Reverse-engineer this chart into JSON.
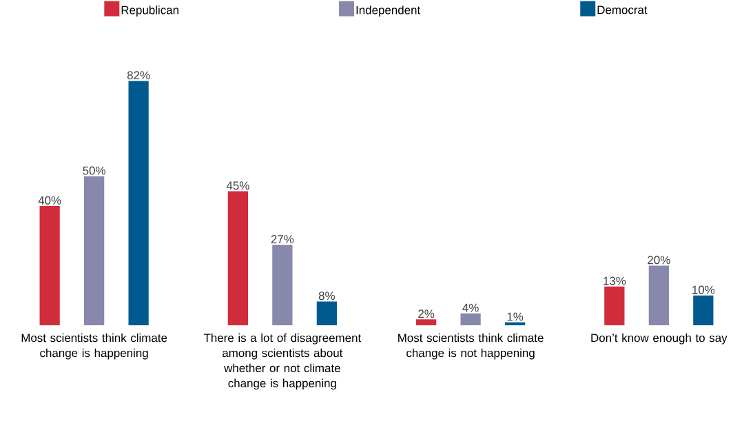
{
  "chart_data": {
    "type": "bar",
    "categories": [
      "Most scientists think climate change is happening",
      "There is a lot of disagreement among scientists about whether or not climate change is happening",
      "Most scientists think climate change is not happening",
      "Don’t know enough to say"
    ],
    "series": [
      {
        "name": "Republican",
        "color": "#d12c3b",
        "values": [
          40,
          45,
          2,
          13
        ],
        "value_labels": [
          "40%",
          "45%",
          "2%",
          "13%"
        ]
      },
      {
        "name": "Independent",
        "color": "#8888ad",
        "values": [
          50,
          27,
          4,
          20
        ],
        "value_labels": [
          "50%",
          "27%",
          "4%",
          "20%"
        ]
      },
      {
        "name": "Democrat",
        "color": "#005a8f",
        "values": [
          82,
          8,
          1,
          10
        ],
        "value_labels": [
          "82%",
          "8%",
          "1%",
          "10%"
        ]
      }
    ],
    "legend": "top"
  }
}
